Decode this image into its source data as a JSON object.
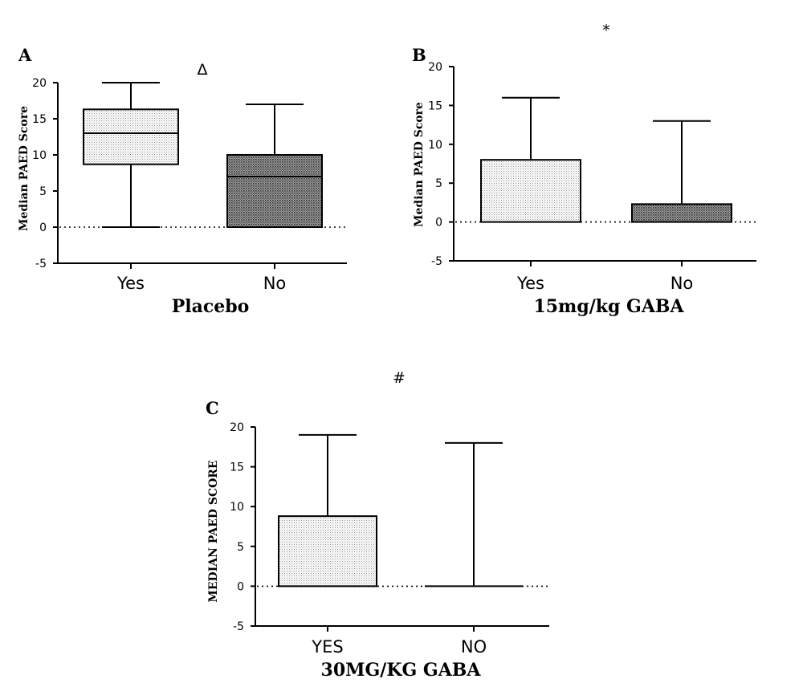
{
  "chart_data": [
    {
      "type": "box",
      "panel_label": "A",
      "significance_marker": "Δ",
      "xlabel": "Placebo",
      "ylabel": "Median PAED Score",
      "ylim": [
        -5,
        20
      ],
      "yticks": [
        -5,
        0,
        5,
        10,
        15,
        20
      ],
      "zero_reference_line": true,
      "categories": [
        "Yes",
        "No"
      ],
      "boxes": [
        {
          "category": "Yes",
          "min": 0,
          "q1": 8.7,
          "median": 13,
          "q3": 16.3,
          "max": 20,
          "fill": "light"
        },
        {
          "category": "No",
          "min": 0,
          "q1": 0,
          "median": 7,
          "q3": 10,
          "max": 17,
          "fill": "dark"
        }
      ]
    },
    {
      "type": "box",
      "panel_label": "B",
      "significance_marker": "*",
      "xlabel": "15mg/kg GABA",
      "ylabel": "Median PAED Score",
      "ylim": [
        -5,
        20
      ],
      "yticks": [
        -5,
        0,
        5,
        10,
        15,
        20
      ],
      "zero_reference_line": true,
      "categories": [
        "Yes",
        "No"
      ],
      "boxes": [
        {
          "category": "Yes",
          "min": 0,
          "q1": 0,
          "median": 0,
          "q3": 8,
          "max": 16,
          "fill": "light"
        },
        {
          "category": "No",
          "min": 0,
          "q1": 0,
          "median": 0,
          "q3": 2.3,
          "max": 13,
          "fill": "dark"
        }
      ]
    },
    {
      "type": "box",
      "panel_label": "C",
      "significance_marker": "#",
      "xlabel": "30MG/KG GABA",
      "ylabel": "MEDIAN PAED SCORE",
      "ylim": [
        -5,
        20
      ],
      "yticks": [
        -5,
        0,
        5,
        10,
        15,
        20
      ],
      "zero_reference_line": true,
      "categories": [
        "YES",
        "NO"
      ],
      "boxes": [
        {
          "category": "YES",
          "min": 0,
          "q1": 0,
          "median": 0,
          "q3": 8.8,
          "max": 19,
          "fill": "light"
        },
        {
          "category": "NO",
          "min": 0,
          "q1": 0,
          "median": 0,
          "q3": 0,
          "max": 18,
          "fill": "none"
        }
      ]
    }
  ]
}
